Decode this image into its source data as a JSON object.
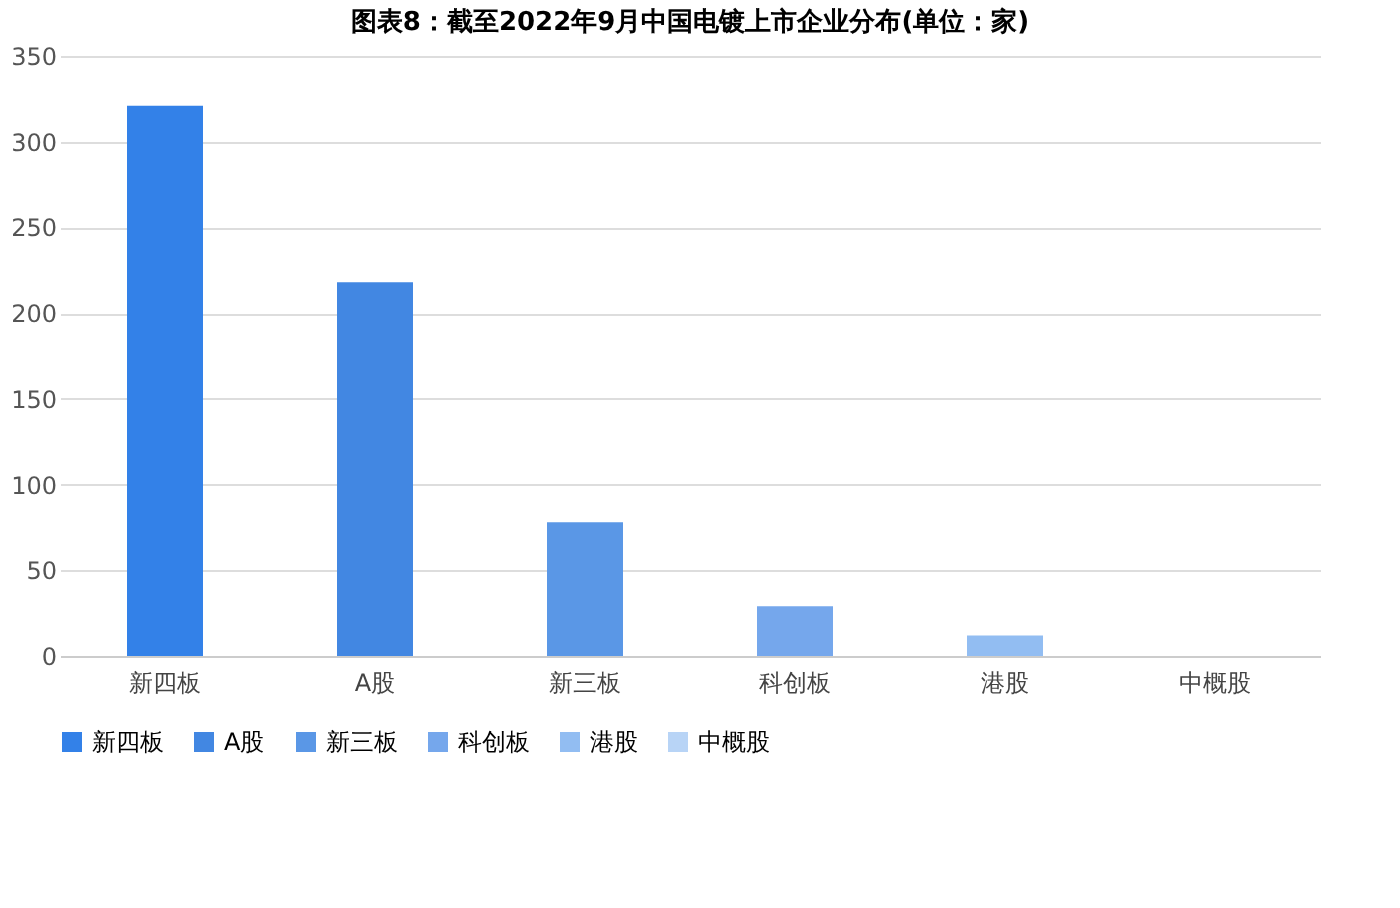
{
  "chart_data": {
    "type": "bar",
    "title": "图表8：截至2022年9月中国电镀上市企业分布(单位：家)",
    "categories": [
      "新四板",
      "A股",
      "新三板",
      "科创板",
      "港股",
      "中概股"
    ],
    "stacked": true,
    "series": [
      {
        "name": "新四板",
        "color": "#3381e8",
        "values": [
          321,
          null,
          null,
          null,
          null,
          null
        ]
      },
      {
        "name": "A股",
        "color": "#4287e2",
        "values": [
          null,
          218,
          null,
          null,
          null,
          null
        ]
      },
      {
        "name": "新三板",
        "color": "#5a97e6",
        "values": [
          null,
          null,
          78,
          null,
          null,
          null
        ]
      },
      {
        "name": "科创板",
        "color": "#75a7ec",
        "values": [
          null,
          null,
          null,
          29,
          null,
          null
        ]
      },
      {
        "name": "港股",
        "color": "#92bdf2",
        "values": [
          null,
          null,
          null,
          null,
          12,
          null
        ]
      },
      {
        "name": "中概股",
        "color": "#b8d4f6",
        "values": [
          null,
          null,
          null,
          null,
          null,
          0
        ]
      }
    ],
    "ylim": [
      0,
      350
    ],
    "yticks": [
      0,
      50,
      100,
      150,
      200,
      250,
      300,
      350
    ],
    "grid": "y",
    "legend": "bottom"
  }
}
